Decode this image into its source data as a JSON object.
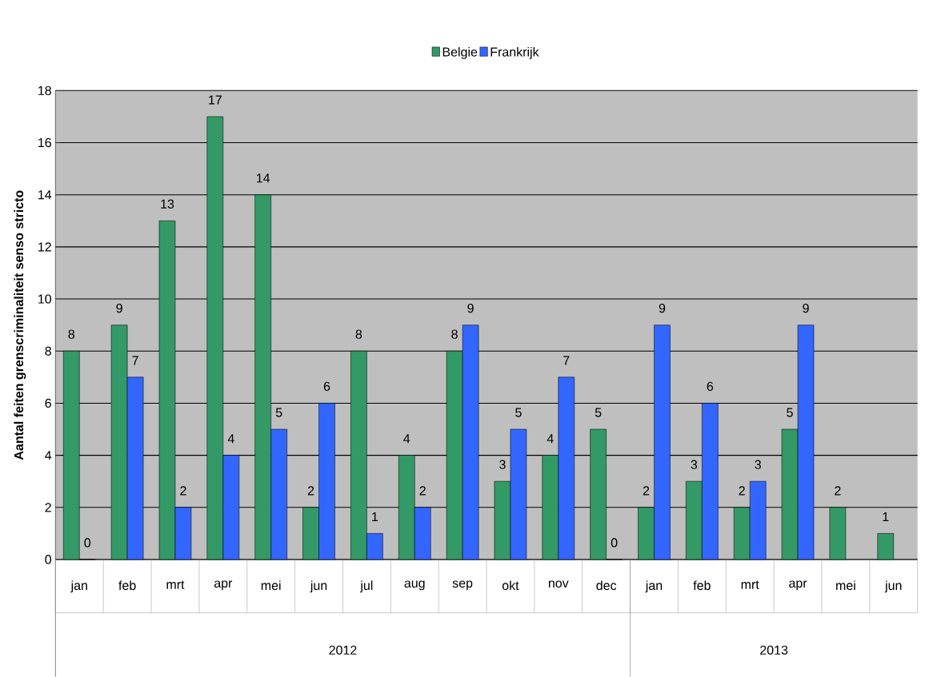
{
  "chart_data": {
    "type": "bar",
    "ylabel": "Aantal feiten grenscriminaliteit senso stricto",
    "categories": [
      "jan",
      "feb",
      "mrt",
      "apr",
      "mei",
      "jun",
      "jul",
      "aug",
      "sep",
      "okt",
      "nov",
      "dec",
      "jan",
      "feb",
      "mrt",
      "apr",
      "mei",
      "jun"
    ],
    "series": [
      {
        "name": "Belgie",
        "color": "#339966",
        "values": [
          8,
          9,
          13,
          17,
          14,
          2,
          8,
          4,
          8,
          3,
          4,
          5,
          2,
          3,
          2,
          5,
          2,
          1
        ]
      },
      {
        "name": "Frankrijk",
        "color": "#3366ff",
        "values": [
          0,
          7,
          2,
          4,
          5,
          6,
          1,
          2,
          9,
          5,
          7,
          0,
          9,
          6,
          3,
          9,
          null,
          null
        ]
      }
    ],
    "ylim": [
      0,
      18
    ],
    "yticks": [
      0,
      2,
      4,
      6,
      8,
      10,
      12,
      14,
      16,
      18
    ],
    "grid": "y",
    "legend": "top",
    "data_labels": true,
    "annotations": [
      "2012",
      "2013"
    ]
  }
}
